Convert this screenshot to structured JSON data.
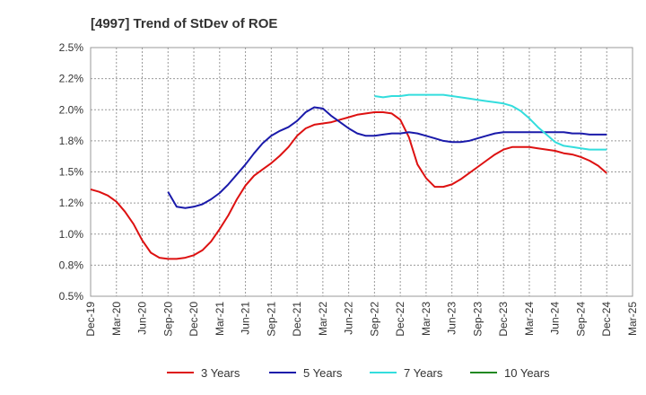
{
  "chart_data": {
    "type": "line",
    "title": "[4997]  Trend of StDev of ROE",
    "xlabel": "",
    "ylabel": "",
    "x_ticks": [
      "Dec-19",
      "Mar-20",
      "Jun-20",
      "Sep-20",
      "Dec-20",
      "Mar-21",
      "Jun-21",
      "Sep-21",
      "Dec-21",
      "Mar-22",
      "Jun-22",
      "Sep-22",
      "Dec-22",
      "Mar-23",
      "Jun-23",
      "Sep-23",
      "Dec-23",
      "Mar-24",
      "Jun-24",
      "Sep-24",
      "Dec-24",
      "Mar-25"
    ],
    "y_ticks": [
      "0.5%",
      "0.8%",
      "1.0%",
      "1.2%",
      "1.5%",
      "1.8%",
      "2.0%",
      "2.2%",
      "2.5%"
    ],
    "ylim": [
      0.5,
      2.5
    ],
    "grid": true,
    "legend_position": "bottom",
    "series": [
      {
        "name": "3 Years",
        "color": "#dd1111",
        "x": [
          0,
          1,
          2,
          3,
          4,
          5,
          6,
          7,
          8,
          9,
          10,
          11,
          12,
          13,
          14,
          15,
          16,
          17,
          18,
          19,
          20,
          21,
          22,
          23,
          24,
          25,
          26,
          27,
          28,
          29,
          30,
          31,
          32,
          33,
          34,
          35,
          36,
          37,
          38,
          39,
          40,
          41,
          42,
          43,
          44,
          45,
          46,
          47,
          48,
          49,
          50,
          51,
          52,
          53,
          54,
          55,
          56,
          57,
          58,
          59,
          60
        ],
        "values": [
          1.36,
          1.34,
          1.31,
          1.26,
          1.18,
          1.08,
          0.95,
          0.85,
          0.81,
          0.8,
          0.8,
          0.81,
          0.83,
          0.87,
          0.94,
          1.04,
          1.15,
          1.28,
          1.39,
          1.47,
          1.52,
          1.57,
          1.63,
          1.7,
          1.79,
          1.85,
          1.88,
          1.89,
          1.9,
          1.92,
          1.94,
          1.96,
          1.97,
          1.98,
          1.98,
          1.97,
          1.92,
          1.78,
          1.56,
          1.45,
          1.38,
          1.38,
          1.4,
          1.44,
          1.49,
          1.54,
          1.59,
          1.64,
          1.68,
          1.7,
          1.7,
          1.7,
          1.69,
          1.68,
          1.67,
          1.65,
          1.64,
          1.62,
          1.59,
          1.55,
          1.49
        ]
      },
      {
        "name": "5 Years",
        "color": "#1a1aaa",
        "x": [
          9,
          10,
          11,
          12,
          13,
          14,
          15,
          16,
          17,
          18,
          19,
          20,
          21,
          22,
          23,
          24,
          25,
          26,
          27,
          28,
          29,
          30,
          31,
          32,
          33,
          34,
          35,
          36,
          37,
          38,
          39,
          40,
          41,
          42,
          43,
          44,
          45,
          46,
          47,
          48,
          49,
          50,
          51,
          52,
          53,
          54,
          55,
          56,
          57,
          58,
          59,
          60
        ],
        "values": [
          1.34,
          1.22,
          1.21,
          1.22,
          1.24,
          1.28,
          1.33,
          1.4,
          1.48,
          1.56,
          1.65,
          1.73,
          1.79,
          1.83,
          1.86,
          1.91,
          1.98,
          2.02,
          2.01,
          1.95,
          1.9,
          1.85,
          1.81,
          1.79,
          1.79,
          1.8,
          1.81,
          1.81,
          1.82,
          1.81,
          1.79,
          1.77,
          1.75,
          1.74,
          1.74,
          1.75,
          1.77,
          1.79,
          1.81,
          1.82,
          1.82,
          1.82,
          1.82,
          1.82,
          1.82,
          1.82,
          1.82,
          1.81,
          1.81,
          1.8,
          1.8,
          1.8
        ]
      },
      {
        "name": "7 Years",
        "color": "#33dddd",
        "x": [
          33,
          34,
          35,
          36,
          37,
          38,
          39,
          40,
          41,
          42,
          43,
          44,
          45,
          46,
          47,
          48,
          49,
          50,
          51,
          52,
          53,
          54,
          55,
          56,
          57,
          58,
          59,
          60
        ],
        "values": [
          2.11,
          2.1,
          2.11,
          2.11,
          2.12,
          2.12,
          2.12,
          2.12,
          2.12,
          2.11,
          2.1,
          2.09,
          2.08,
          2.07,
          2.06,
          2.05,
          2.03,
          1.99,
          1.93,
          1.86,
          1.8,
          1.74,
          1.71,
          1.7,
          1.69,
          1.68,
          1.68,
          1.68
        ]
      },
      {
        "name": "10 Years",
        "color": "#228822",
        "x": [],
        "values": []
      }
    ]
  }
}
